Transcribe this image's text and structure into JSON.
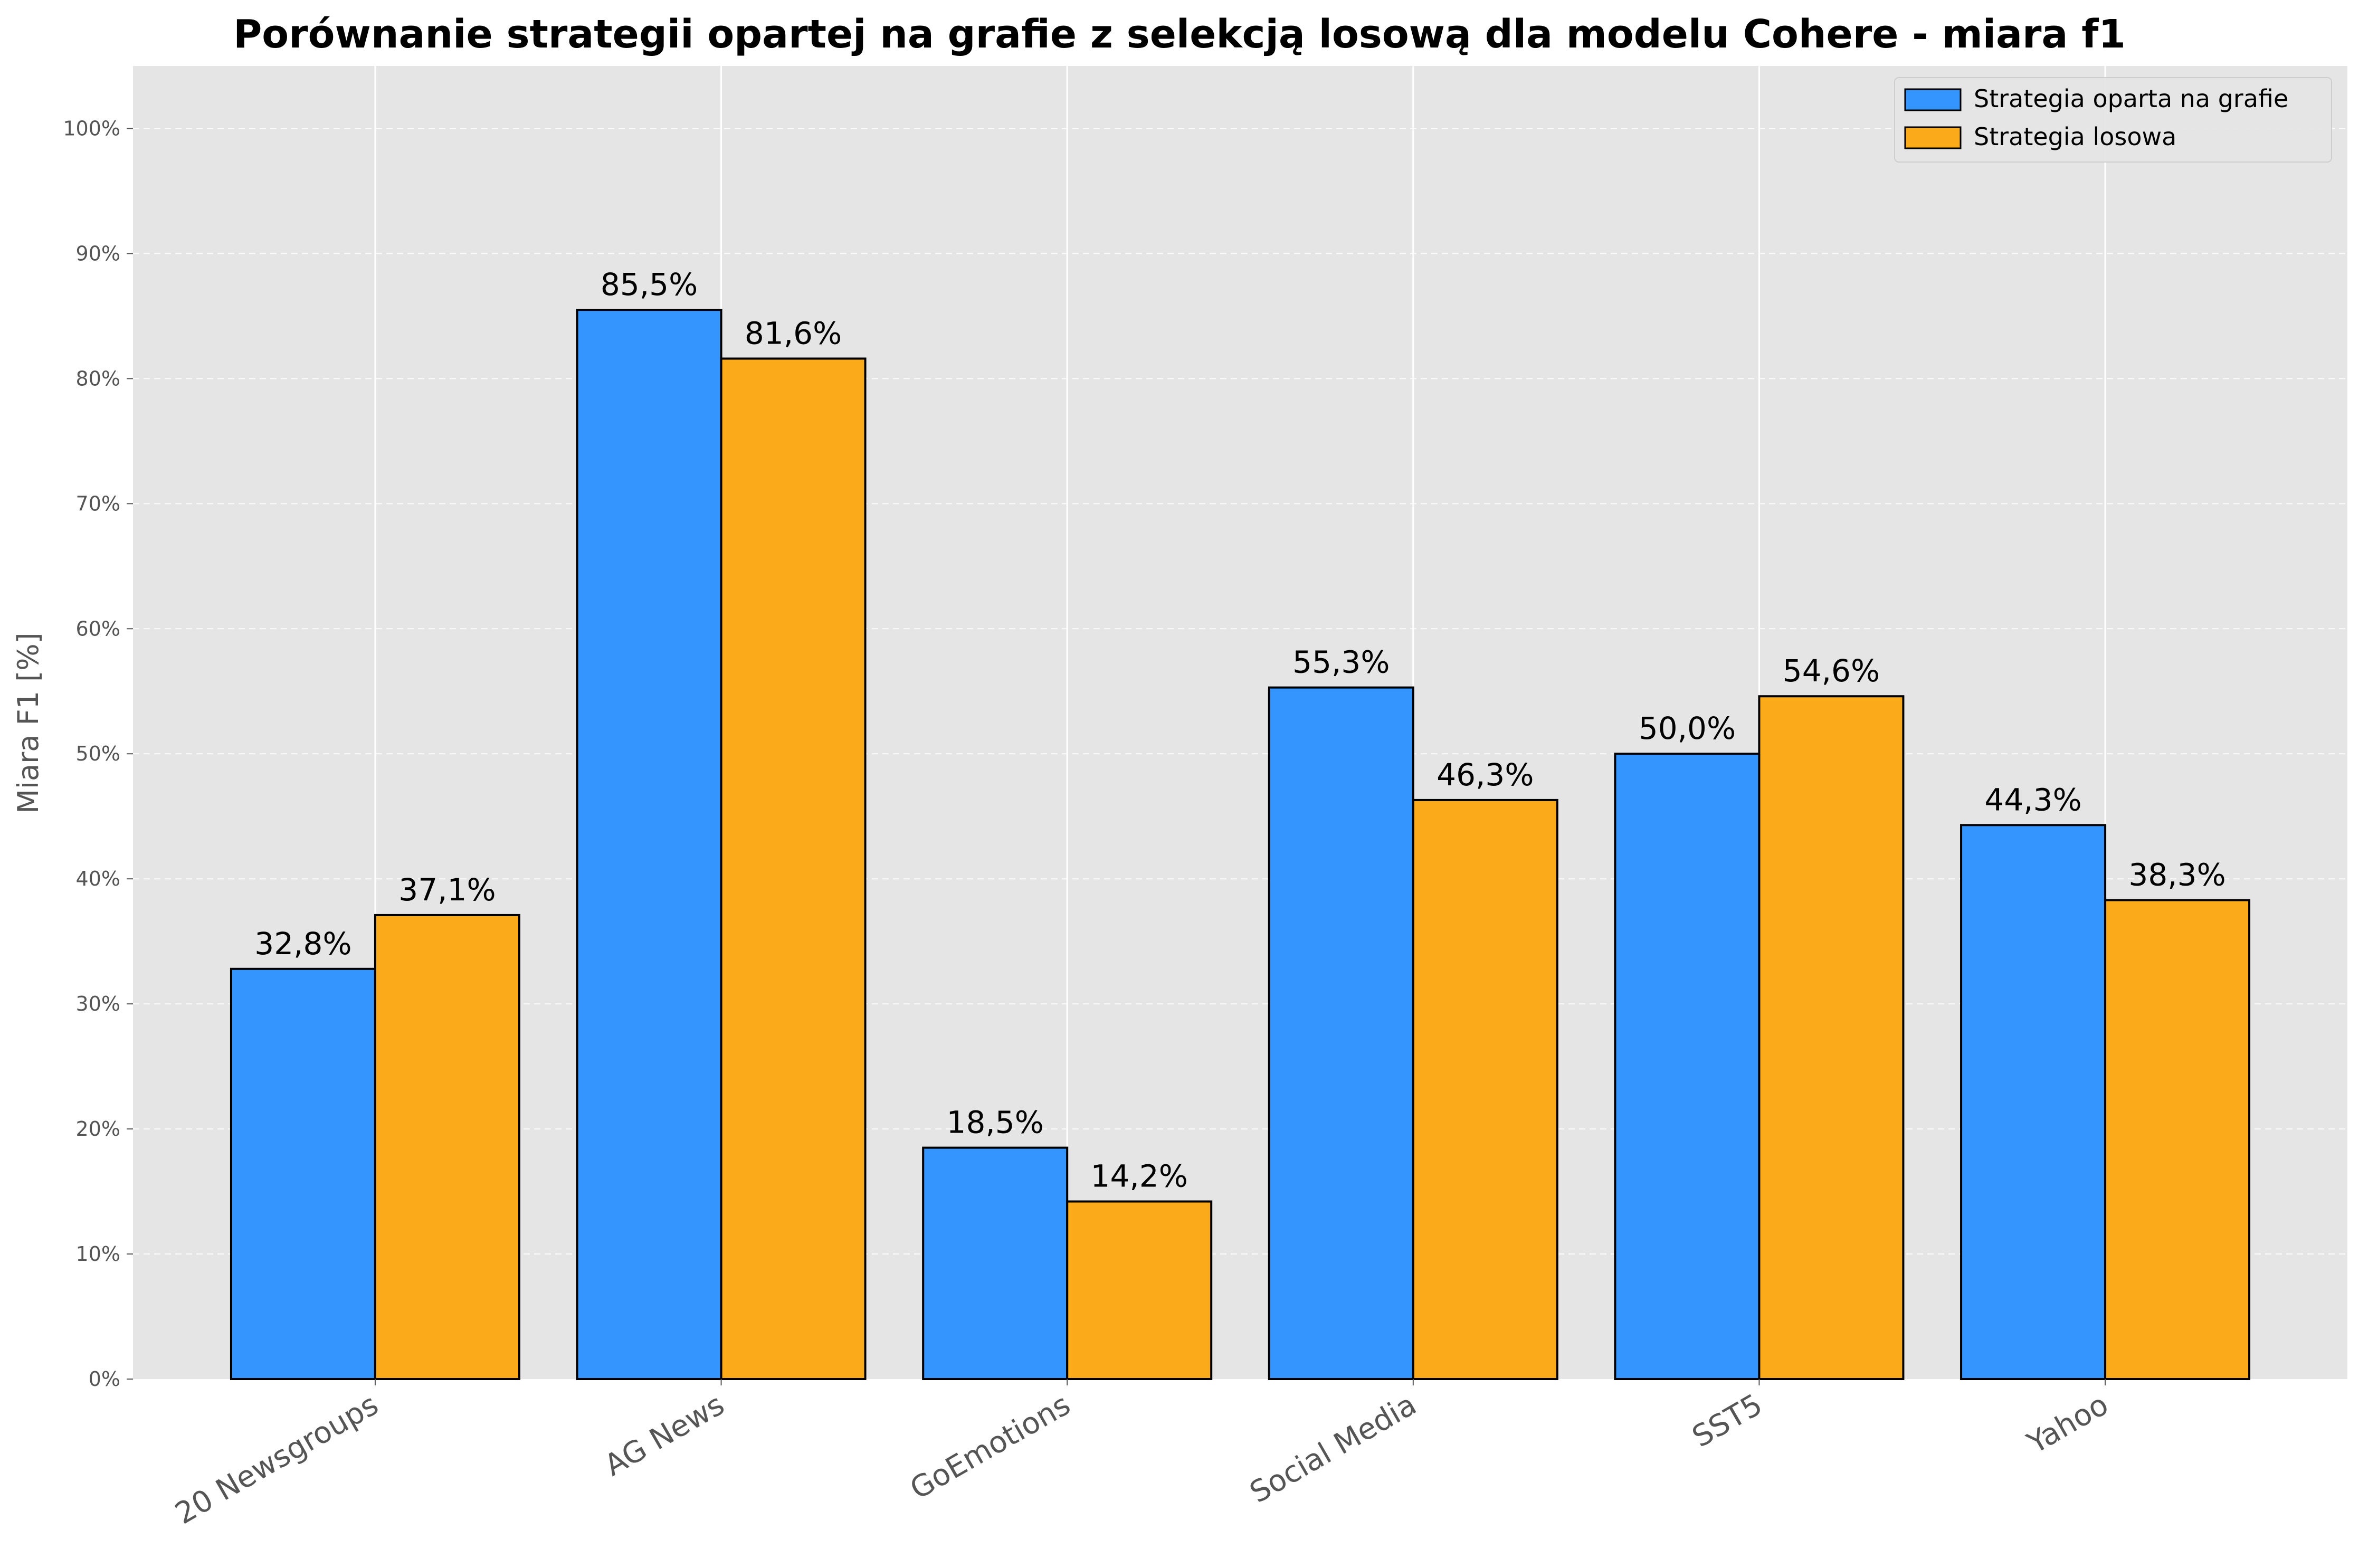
{
  "chart_data": {
    "type": "bar",
    "title": "Porównanie strategii opartej na grafie z selekcją losową dla modelu Cohere - miara f1",
    "xlabel": "",
    "ylabel": "Miara F1 [%]",
    "ylim": [
      0,
      105
    ],
    "yticks": [
      0,
      10,
      20,
      30,
      40,
      50,
      60,
      70,
      80,
      90,
      100
    ],
    "ytick_labels": [
      "0%",
      "10%",
      "20%",
      "30%",
      "40%",
      "50%",
      "60%",
      "70%",
      "80%",
      "90%",
      "100%"
    ],
    "grid": true,
    "legend_position": "top-right",
    "categories": [
      "20 Newsgroups",
      "AG News",
      "GoEmotions",
      "Social Media",
      "SST5",
      "Yahoo"
    ],
    "series": [
      {
        "name": "Strategia oparta na grafie",
        "color": "#3395fd",
        "values": [
          32.8,
          85.5,
          18.5,
          55.3,
          50.0,
          44.3
        ],
        "labels": [
          "32,8%",
          "85,5%",
          "18,5%",
          "55,3%",
          "50,0%",
          "44,3%"
        ]
      },
      {
        "name": "Strategia losowa",
        "color": "#fbaa1a",
        "values": [
          37.1,
          81.6,
          14.2,
          46.3,
          54.6,
          38.3
        ],
        "labels": [
          "37,1%",
          "81,6%",
          "14,2%",
          "46,3%",
          "54,6%",
          "38,3%"
        ]
      }
    ],
    "colors": {
      "plot_background": "#e5e5e5",
      "grid": "#ffffff",
      "bar_edge": "#000000"
    }
  }
}
